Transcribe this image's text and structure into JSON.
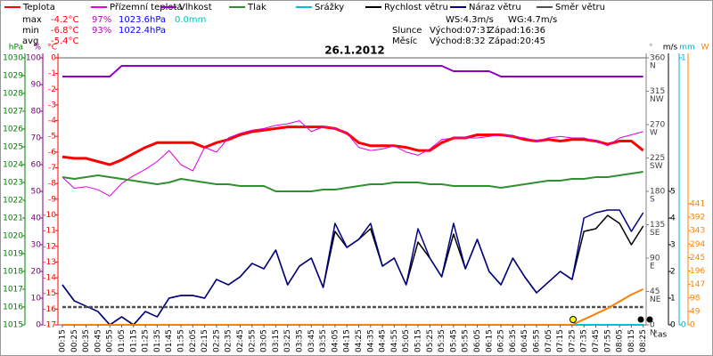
{
  "chart_data": {
    "type": "line",
    "title": "26.1.2012",
    "x_label": "čas",
    "categories": [
      "00:15",
      "00:25",
      "00:35",
      "00:45",
      "00:55",
      "01:05",
      "01:15",
      "01:25",
      "01:35",
      "01:45",
      "01:55",
      "02:05",
      "02:15",
      "02:25",
      "02:35",
      "02:45",
      "02:55",
      "03:05",
      "03:15",
      "03:25",
      "03:35",
      "03:45",
      "03:55",
      "04:05",
      "04:15",
      "04:25",
      "04:35",
      "04:45",
      "04:55",
      "05:05",
      "05:15",
      "05:25",
      "05:35",
      "05:45",
      "05:55",
      "06:05",
      "06:15",
      "06:25",
      "06:35",
      "06:45",
      "06:55",
      "07:05",
      "07:15",
      "07:25",
      "07:35",
      "07:45",
      "07:55",
      "08:05",
      "08:15",
      "08:25"
    ],
    "axes": {
      "press": {
        "unit": "hPa",
        "color": "#008000",
        "lim": [
          1015,
          1030
        ],
        "ticks": [
          1015,
          1016,
          1017,
          1018,
          1019,
          1020,
          1021,
          1022,
          1023,
          1024,
          1025,
          1026,
          1027,
          1028,
          1029,
          1030
        ]
      },
      "hum": {
        "unit": "%",
        "color": "#800080",
        "lim": [
          0,
          100
        ],
        "ticks": [
          0,
          10,
          20,
          30,
          40,
          50,
          60,
          70,
          80,
          90,
          100
        ]
      },
      "temp": {
        "unit": "°C",
        "color": "#ff0000",
        "lim": [
          -17,
          0
        ],
        "ticks": [
          -17,
          -16,
          -15,
          -14,
          -13,
          -12,
          -11,
          -10,
          -9,
          -8,
          -7,
          -6,
          -5,
          -4,
          -3,
          -2,
          -1,
          0
        ]
      },
      "dir": {
        "unit": "°",
        "color": "#808080",
        "lim": [
          0,
          360
        ],
        "ticks": [
          0,
          45,
          90,
          135,
          180,
          225,
          270,
          315,
          360
        ],
        "compass": [
          "N",
          "NE",
          "E",
          "SE",
          "S",
          "SW",
          "W",
          "NW",
          "N"
        ]
      },
      "speed": {
        "unit": "m/s",
        "color": "#000000",
        "lim": [
          0,
          10
        ],
        "ticks": [
          0,
          1,
          2,
          3,
          4,
          5
        ]
      },
      "rain": {
        "unit": "mm",
        "color": "#00b0d0",
        "lim": [
          0,
          1
        ],
        "ticks": [
          0,
          1
        ]
      },
      "solar": {
        "unit": "W",
        "color": "#ff8000",
        "lim": [
          0,
          972
        ],
        "ticks": [
          0,
          49,
          98,
          147,
          196,
          245,
          294,
          343,
          392,
          441
        ]
      }
    },
    "series": [
      {
        "name": "Teplota",
        "color": "#ff0000",
        "axis": "temp",
        "width": 3,
        "values": [
          -6.3,
          -6.4,
          -6.4,
          -6.6,
          -6.8,
          -6.5,
          -6.1,
          -5.7,
          -5.4,
          -5.4,
          -5.4,
          -5.4,
          -5.7,
          -5.4,
          -5.2,
          -4.9,
          -4.7,
          -4.6,
          -4.5,
          -4.4,
          -4.4,
          -4.4,
          -4.4,
          -4.5,
          -4.8,
          -5.4,
          -5.6,
          -5.6,
          -5.6,
          -5.7,
          -5.9,
          -5.9,
          -5.4,
          -5.1,
          -5.1,
          -4.9,
          -4.9,
          -4.9,
          -5.0,
          -5.2,
          -5.3,
          -5.2,
          -5.3,
          -5.2,
          -5.2,
          -5.3,
          -5.5,
          -5.3,
          -5.3,
          -5.9
        ]
      },
      {
        "name": "Přízemní teplota",
        "color": "#e000e0",
        "axis": "temp",
        "width": 1,
        "values": [
          -7.6,
          -8.3,
          -8.2,
          -8.4,
          -8.8,
          -8.0,
          -7.5,
          -7.1,
          -6.6,
          -5.9,
          -6.8,
          -7.2,
          -5.7,
          -6.0,
          -5.1,
          -4.8,
          -4.6,
          -4.5,
          -4.3,
          -4.2,
          -4.0,
          -4.7,
          -4.4,
          -4.5,
          -4.8,
          -5.7,
          -5.9,
          -5.8,
          -5.6,
          -6.0,
          -6.2,
          -5.8,
          -5.2,
          -5.1,
          -5.1,
          -5.1,
          -5.0,
          -4.9,
          -5.0,
          -5.1,
          -5.3,
          -5.1,
          -5.0,
          -5.1,
          -5.1,
          -5.3,
          -5.6,
          -5.1,
          -4.9,
          -4.7
        ]
      },
      {
        "name": "Vlhkost",
        "color": "#9000c0",
        "axis": "hum",
        "width": 2,
        "values": [
          93,
          93,
          93,
          93,
          93,
          97,
          97,
          97,
          97,
          97,
          97,
          97,
          97,
          97,
          97,
          97,
          97,
          97,
          97,
          97,
          97,
          97,
          97,
          97,
          97,
          97,
          97,
          97,
          97,
          97,
          97,
          97,
          97,
          95,
          95,
          95,
          95,
          93,
          93,
          93,
          93,
          93,
          93,
          93,
          93,
          93,
          93,
          93,
          93,
          93
        ]
      },
      {
        "name": "Tlak",
        "color": "#309030",
        "axis": "press",
        "width": 2,
        "values": [
          1023.3,
          1023.2,
          1023.3,
          1023.4,
          1023.3,
          1023.2,
          1023.1,
          1023.0,
          1022.9,
          1023.0,
          1023.2,
          1023.1,
          1023.0,
          1022.9,
          1022.9,
          1022.8,
          1022.8,
          1022.8,
          1022.5,
          1022.5,
          1022.5,
          1022.5,
          1022.6,
          1022.6,
          1022.7,
          1022.8,
          1022.9,
          1022.9,
          1023.0,
          1023.0,
          1023.0,
          1022.9,
          1022.9,
          1022.8,
          1022.8,
          1022.8,
          1022.8,
          1022.7,
          1022.8,
          1022.9,
          1023.0,
          1023.1,
          1023.1,
          1023.2,
          1023.2,
          1023.3,
          1023.3,
          1023.4,
          1023.5,
          1023.6
        ]
      },
      {
        "name": "Srážky",
        "color": "#00c0e0",
        "axis": "rain",
        "width": 2,
        "values": [
          0,
          0,
          0,
          0,
          0,
          0,
          0,
          0,
          0,
          0,
          0,
          0,
          0,
          0,
          0,
          0,
          0,
          0,
          0,
          0,
          0,
          0,
          0,
          0,
          0,
          0,
          0,
          0,
          0,
          0,
          0,
          0,
          0,
          0,
          0,
          0,
          0,
          0,
          0,
          0,
          0,
          0,
          0,
          0,
          0,
          0,
          0,
          0,
          0,
          0
        ]
      },
      {
        "name": "Rychlost větru",
        "color": "#000000",
        "axis": "speed",
        "width": 1.5,
        "values": [
          1.5,
          0.9,
          0.7,
          0.5,
          0.0,
          0.3,
          0.0,
          0.5,
          0.3,
          1.0,
          1.1,
          1.1,
          1.0,
          1.7,
          1.5,
          1.8,
          2.3,
          2.1,
          2.8,
          1.5,
          2.2,
          2.5,
          1.4,
          3.5,
          2.9,
          3.2,
          3.6,
          2.2,
          2.5,
          1.5,
          3.1,
          2.5,
          1.8,
          3.4,
          2.1,
          3.2,
          2.0,
          1.5,
          2.5,
          1.8,
          1.2,
          1.6,
          2.0,
          1.7,
          3.5,
          3.6,
          4.1,
          3.8,
          3.0,
          3.7
        ]
      },
      {
        "name": "Náraz větru",
        "color": "#000080",
        "axis": "speed",
        "width": 1.5,
        "values": [
          1.5,
          0.9,
          0.7,
          0.5,
          0.0,
          0.3,
          0.0,
          0.5,
          0.3,
          1.0,
          1.1,
          1.1,
          1.0,
          1.7,
          1.5,
          1.8,
          2.3,
          2.1,
          2.8,
          1.5,
          2.2,
          2.5,
          1.4,
          3.8,
          2.9,
          3.2,
          3.8,
          2.2,
          2.5,
          1.5,
          3.6,
          2.5,
          1.8,
          3.8,
          2.1,
          3.2,
          2.0,
          1.5,
          2.5,
          1.8,
          1.2,
          1.6,
          2.0,
          1.7,
          4.0,
          4.2,
          4.3,
          4.3,
          3.5,
          4.2
        ]
      },
      {
        "name": "Směr větru",
        "color": "#505050",
        "axis": "dir",
        "width": 2.5,
        "dash": true,
        "values": [
          24,
          24,
          24,
          24,
          24,
          24,
          24,
          24,
          24,
          24,
          24,
          24,
          24,
          24,
          24,
          24,
          24,
          24,
          24,
          24,
          24,
          24,
          24,
          24,
          24,
          24,
          24,
          24,
          24,
          24,
          24,
          24,
          24,
          24,
          24,
          24,
          24,
          24,
          24,
          24,
          24,
          24,
          24,
          24,
          24,
          24,
          24,
          24,
          24,
          24
        ]
      },
      {
        "color": "#ff8000",
        "axis": "solar",
        "width": 2,
        "values": [
          0,
          0,
          0,
          0,
          0,
          0,
          0,
          0,
          0,
          0,
          0,
          0,
          0,
          0,
          0,
          0,
          0,
          0,
          0,
          0,
          0,
          0,
          0,
          0,
          0,
          0,
          0,
          0,
          0,
          0,
          0,
          0,
          0,
          0,
          0,
          0,
          0,
          0,
          0,
          0,
          0,
          0,
          0,
          0,
          20,
          40,
          60,
          85,
          110,
          130
        ]
      }
    ],
    "stats": [
      [
        "max",
        "-4.2°C",
        "97%",
        "1023.6hPa",
        "0.0mm"
      ],
      [
        "min",
        "-6.8°C",
        "93%",
        "1022.4hPa"
      ],
      [
        "avg",
        "-5.4°C"
      ]
    ],
    "stat_colors": [
      "#ff0000",
      "#c000c0",
      "#0000ff",
      "#00c0c0"
    ],
    "wind_stats": [
      "WS:4.3m/s",
      "WG:4.7m/s"
    ],
    "sun": [
      "Slunce",
      "Východ:07:31",
      "Západ:16:36"
    ],
    "moon": [
      "Měsíc",
      "Východ:8:32",
      "Západ:20:45"
    ]
  }
}
